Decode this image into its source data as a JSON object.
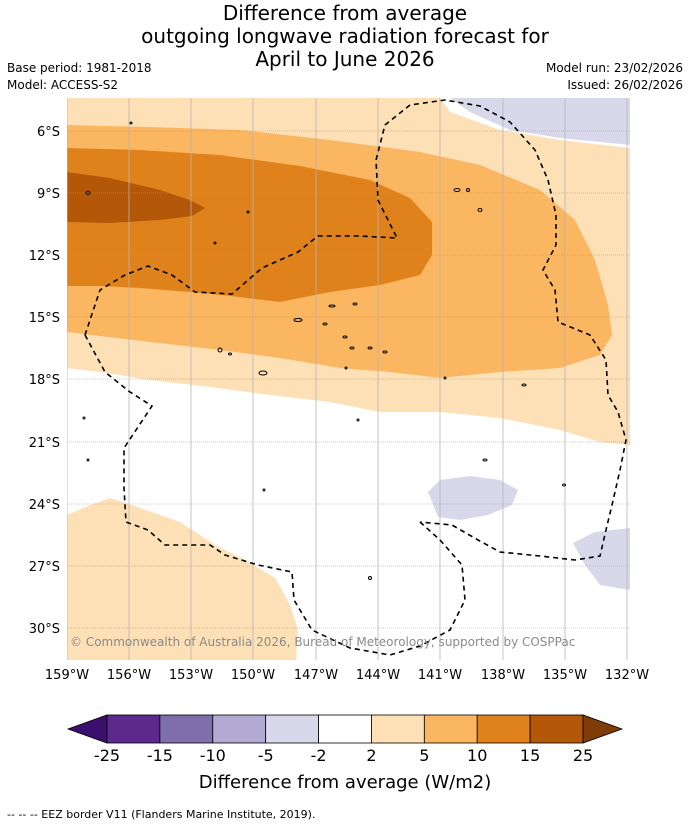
{
  "title": {
    "line1": "Difference from average",
    "line2": "outgoing longwave radiation forecast for",
    "line3": "April to June 2026"
  },
  "meta": {
    "base_period": "Base period: 1981-2018",
    "model": "Model: ACCESS-S2",
    "model_run": "Model run: 23/02/2026",
    "issued": "Issued: 26/02/2026"
  },
  "map": {
    "lat_labels": [
      "6°S",
      "9°S",
      "12°S",
      "15°S",
      "18°S",
      "21°S",
      "24°S",
      "27°S",
      "30°S"
    ],
    "lon_labels": [
      "159°W",
      "156°W",
      "153°W",
      "150°W",
      "147°W",
      "144°W",
      "141°W",
      "138°W",
      "135°W",
      "132°W"
    ],
    "copyright": "© Commonwealth of Australia 2026, Bureau of Meteorology, supported by COSPPac"
  },
  "colorbar": {
    "ticks": [
      "-25",
      "-15",
      "-10",
      "-5",
      "-2",
      "2",
      "5",
      "10",
      "15",
      "25"
    ],
    "colors": [
      "#5b2a8c",
      "#7e6eac",
      "#b3aad3",
      "#d9d8ea",
      "#ffffff",
      "#fde0b6",
      "#fbb662",
      "#e0821c",
      "#b35808"
    ],
    "low_extend_color": "#3b0f6e",
    "high_extend_color": "#7f3b08",
    "title": "Difference from average (W/m2)"
  },
  "footnote": "--  --  -- EEZ border V11 (Flanders Marine Institute, 2019)."
}
